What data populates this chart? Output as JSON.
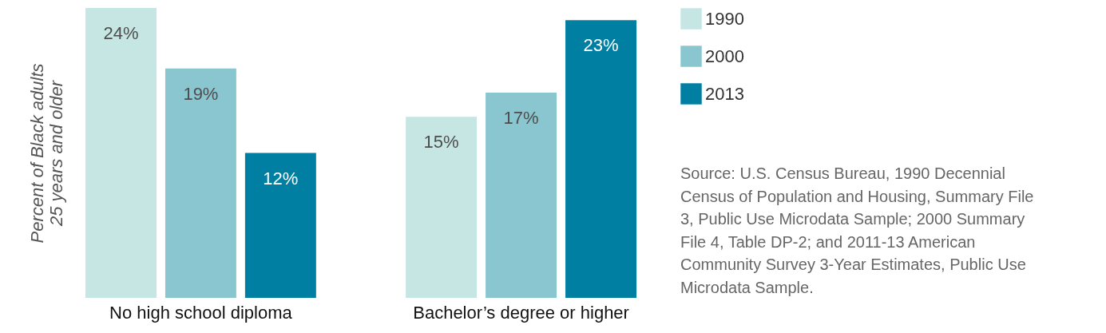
{
  "chart_data": {
    "type": "bar",
    "categories": [
      "No high school diploma",
      "Bachelor’s degree or higher"
    ],
    "series": [
      {
        "name": "1990",
        "color": "#c5e6e3",
        "values": [
          24,
          15
        ],
        "value_labels": [
          "24%",
          "15%"
        ]
      },
      {
        "name": "2000",
        "color": "#89c6cf",
        "values": [
          19,
          17
        ],
        "value_labels": [
          "19%",
          "17%"
        ]
      },
      {
        "name": "2013",
        "color": "#007fa3",
        "values": [
          12,
          23
        ],
        "value_labels": [
          "12%",
          "23%"
        ]
      }
    ],
    "ylabel": "Percent of Black adults\n25 years and older",
    "legend": "top right",
    "grid": false,
    "annotations": [
      "Source: U.S. Census Bureau, 1990 Decennial Census of Population and Housing, Summary File 3, Public Use Microdata Sample; 2000 Summary File 4, Table DP-2; and 2011-13 American Community Survey 3-Year Estimates, Public Use Microdata Sample."
    ]
  }
}
